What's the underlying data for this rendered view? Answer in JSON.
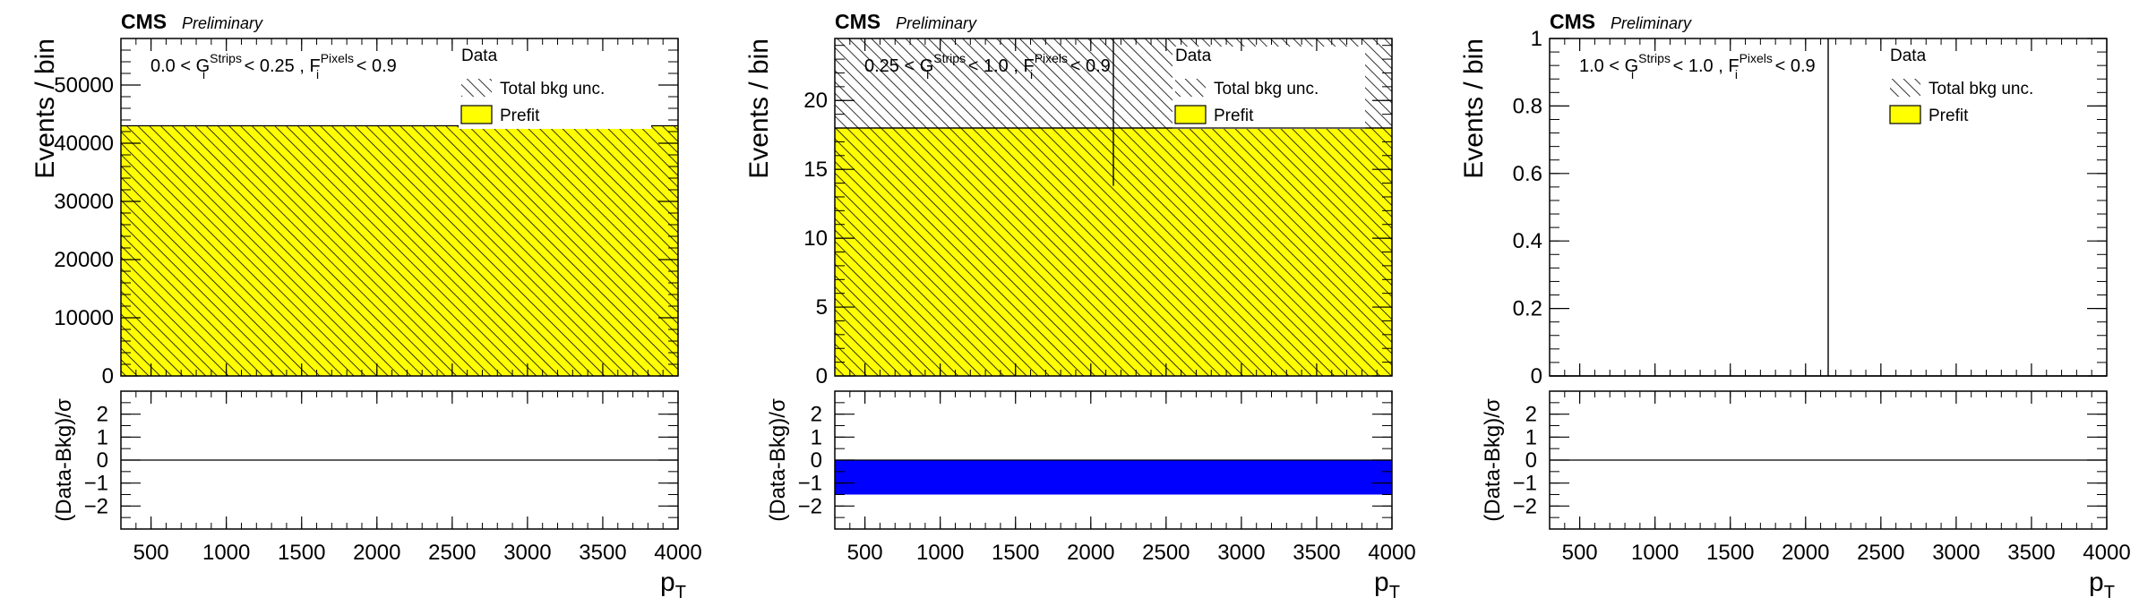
{
  "chart_data": [
    {
      "type": "bar",
      "header": {
        "experiment": "CMS",
        "status": "Preliminary"
      },
      "region": {
        "pre": "0.0 < G",
        "g_sup": "Strips",
        "g_sub": "i",
        "mid": " < 0.25 , F",
        "f_sup": "Pixels",
        "f_sub": "i",
        "post": " < 0.9"
      },
      "legend": {
        "data": "Data",
        "unc": "Total bkg unc.",
        "prefit": "Prefit",
        "position": "top-right"
      },
      "ylabel": "Events / bin",
      "xlabel": {
        "base": "p",
        "sub": "T"
      },
      "xlim": [
        300,
        4000
      ],
      "ylim": [
        0,
        58000
      ],
      "yticks": [
        "0",
        "10000",
        "20000",
        "30000",
        "40000",
        "50000"
      ],
      "ytick_values": [
        0,
        10000,
        20000,
        30000,
        40000,
        50000
      ],
      "xticks": [
        "500",
        "1000",
        "1500",
        "2000",
        "2500",
        "3000",
        "3500",
        "4000"
      ],
      "xtick_values": [
        500,
        1000,
        1500,
        2000,
        2500,
        3000,
        3500,
        4000
      ],
      "bins": [
        [
          300,
          4000
        ]
      ],
      "prefit": [
        43000
      ],
      "bkg_unc": [
        [
          0,
          43000
        ]
      ],
      "data_points": [],
      "ratio": {
        "ylabel": "(Data-Bkg)/σ",
        "ylim": [
          -3,
          3
        ],
        "yticks": [
          "2",
          "1",
          "0",
          "−1",
          "−2"
        ],
        "ytick_values": [
          2,
          1,
          0,
          -1,
          -2
        ],
        "values": [
          0
        ],
        "color": "#0000ff"
      },
      "colors": {
        "prefit": "#ffff00",
        "ratio": "#0000ff"
      }
    },
    {
      "type": "bar",
      "header": {
        "experiment": "CMS",
        "status": "Preliminary"
      },
      "region": {
        "pre": "0.25 < G",
        "g_sup": "Strips",
        "g_sub": "i",
        "mid": " < 1.0 , F",
        "f_sup": "Pixels",
        "f_sub": "i",
        "post": " < 0.9"
      },
      "legend": {
        "data": "Data",
        "unc": "Total bkg unc.",
        "prefit": "Prefit",
        "position": "top-right"
      },
      "ylabel": "Events / bin",
      "xlabel": {
        "base": "p",
        "sub": "T"
      },
      "xlim": [
        300,
        4000
      ],
      "ylim": [
        0,
        24.5
      ],
      "yticks": [
        "0",
        "5",
        "10",
        "15",
        "20"
      ],
      "ytick_values": [
        0,
        5,
        10,
        15,
        20
      ],
      "xticks": [
        "500",
        "1000",
        "1500",
        "2000",
        "2500",
        "3000",
        "3500",
        "4000"
      ],
      "xtick_values": [
        500,
        1000,
        1500,
        2000,
        2500,
        3000,
        3500,
        4000
      ],
      "bins": [
        [
          300,
          4000
        ]
      ],
      "prefit": [
        18
      ],
      "bkg_unc": [
        [
          0,
          24.5
        ]
      ],
      "data_points": [
        {
          "x": 2150,
          "y": 18,
          "yerr": [
            13.8,
            24.5
          ]
        }
      ],
      "ratio": {
        "ylabel": "(Data-Bkg)/σ",
        "ylim": [
          -3,
          3
        ],
        "yticks": [
          "2",
          "1",
          "0",
          "−1",
          "−2"
        ],
        "ytick_values": [
          2,
          1,
          0,
          -1,
          -2
        ],
        "values": [
          -1.5
        ],
        "color": "#0000ff"
      },
      "colors": {
        "prefit": "#ffff00",
        "ratio": "#0000ff"
      }
    },
    {
      "type": "bar",
      "header": {
        "experiment": "CMS",
        "status": "Preliminary"
      },
      "region": {
        "pre": "1.0 < G",
        "g_sup": "Strips",
        "g_sub": "i",
        "mid": " < 1.0 , F",
        "f_sup": "Pixels",
        "f_sub": "i",
        "post": " < 0.9"
      },
      "legend": {
        "data": "Data",
        "unc": "Total bkg unc.",
        "prefit": "Prefit",
        "position": "top-right"
      },
      "ylabel": "Events / bin",
      "xlabel": {
        "base": "p",
        "sub": "T"
      },
      "xlim": [
        300,
        4000
      ],
      "ylim": [
        0,
        1
      ],
      "yticks": [
        "0",
        "0.2",
        "0.4",
        "0.6",
        "0.8",
        "1"
      ],
      "ytick_values": [
        0,
        0.2,
        0.4,
        0.6,
        0.8,
        1
      ],
      "xticks": [
        "500",
        "1000",
        "1500",
        "2000",
        "2500",
        "3000",
        "3500",
        "4000"
      ],
      "xtick_values": [
        500,
        1000,
        1500,
        2000,
        2500,
        3000,
        3500,
        4000
      ],
      "bins": [
        [
          300,
          4000
        ]
      ],
      "prefit": [
        0
      ],
      "bkg_unc": [],
      "data_points": [
        {
          "x": 2150,
          "y": 0,
          "yerr": [
            0,
            1
          ]
        }
      ],
      "ratio": {
        "ylabel": "(Data-Bkg)/σ",
        "ylim": [
          -3,
          3
        ],
        "yticks": [
          "2",
          "1",
          "0",
          "−1",
          "−2"
        ],
        "ytick_values": [
          2,
          1,
          0,
          -1,
          -2
        ],
        "values": [
          0
        ],
        "color": "#0000ff"
      },
      "colors": {
        "prefit": "#ffff00",
        "ratio": "#0000ff"
      }
    }
  ]
}
